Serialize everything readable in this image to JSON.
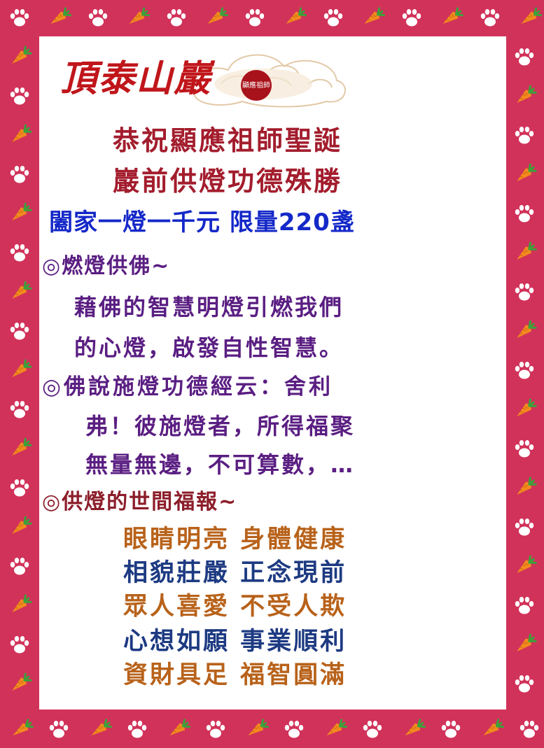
{
  "logo": {
    "name": "頂泰山巖",
    "seal": "顯應祖師"
  },
  "titles": [
    "恭祝顯應祖師聖誕",
    "巖前供燈功德殊勝"
  ],
  "offer": "闔家一燈一千元 限量220盞",
  "section1": {
    "heading": "◎燃燈供佛~",
    "lines": [
      "藉佛的智慧明燈引燃我們",
      "的心燈，啟發自性智慧。"
    ]
  },
  "section2": {
    "heading": "◎佛說施燈功德經云：舍利",
    "lines": [
      "弗！彼施燈者，所得福聚",
      "無量無邊，不可算數，…"
    ]
  },
  "section3": {
    "heading": "◎供燈的世間福報~",
    "blessings": [
      "眼睛明亮 身體健康",
      "相貌莊嚴  正念現前",
      "眾人喜愛 不受人欺",
      "心想如願  事業順利",
      "資財具足 福智圓滿"
    ]
  },
  "colors": {
    "border": "#d1325a",
    "title": "#a31d2d",
    "offer": "#1428c8",
    "section": "#5a1e82",
    "blessing_orange": "#b8621a",
    "blessing_blue": "#1d3a82"
  },
  "icons": [
    "paw-print-icon",
    "carrot-icon"
  ]
}
